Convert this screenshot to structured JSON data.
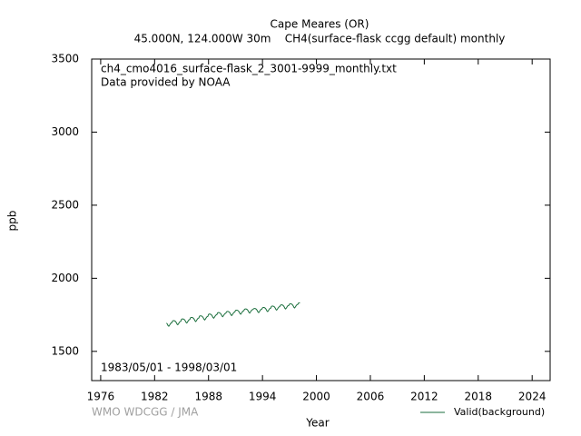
{
  "chart_data": {
    "type": "line",
    "title": "Cape Meares (OR)",
    "subtitle": "45.000N, 124.000W 30m    CH4(surface-flask ccgg default) monthly",
    "annotations": [
      "ch4_cmo4016_surface-flask_2_3001-9999_monthly.txt",
      "Data provided by NOAA",
      "1983/05/01 - 1998/03/01"
    ],
    "credit": "WMO WDCGG / JMA",
    "x_label": "Year",
    "y_label": "ppb",
    "xlim": [
      1975,
      2026
    ],
    "ylim": [
      1300,
      3500
    ],
    "xticks": [
      1976,
      1982,
      1988,
      1994,
      2000,
      2006,
      2012,
      2018,
      2024
    ],
    "yticks": [
      1500,
      2000,
      2500,
      3000,
      3500
    ],
    "grid": false,
    "legend_position": "bottom-right",
    "x": [
      1983.33,
      1983.42,
      1983.5,
      1983.58,
      1983.67,
      1983.75,
      1983.83,
      1983.92,
      1984,
      1984.08,
      1984.17,
      1984.25,
      1984.33,
      1984.42,
      1984.5,
      1984.58,
      1984.67,
      1984.75,
      1984.83,
      1984.92,
      1985,
      1985.08,
      1985.17,
      1985.25,
      1985.33,
      1985.42,
      1985.5,
      1985.58,
      1985.67,
      1985.75,
      1985.83,
      1985.92,
      1986,
      1986.08,
      1986.17,
      1986.25,
      1986.33,
      1986.42,
      1986.5,
      1986.58,
      1986.67,
      1986.75,
      1986.83,
      1986.92,
      1987,
      1987.08,
      1987.17,
      1987.25,
      1987.33,
      1987.42,
      1987.5,
      1987.58,
      1987.67,
      1987.75,
      1987.83,
      1987.92,
      1988,
      1988.08,
      1988.17,
      1988.25,
      1988.33,
      1988.42,
      1988.5,
      1988.58,
      1988.67,
      1988.75,
      1988.83,
      1988.92,
      1989,
      1989.08,
      1989.17,
      1989.25,
      1989.33,
      1989.42,
      1989.5,
      1989.58,
      1989.67,
      1989.75,
      1989.83,
      1989.92,
      1990,
      1990.08,
      1990.17,
      1990.25,
      1990.33,
      1990.42,
      1990.5,
      1990.58,
      1990.67,
      1990.75,
      1990.83,
      1990.92,
      1991,
      1991.08,
      1991.17,
      1991.25,
      1991.33,
      1991.42,
      1991.5,
      1991.58,
      1991.67,
      1991.75,
      1991.83,
      1991.92,
      1992,
      1992.08,
      1992.17,
      1992.25,
      1992.33,
      1992.42,
      1992.5,
      1992.58,
      1992.67,
      1992.75,
      1992.83,
      1992.92,
      1993,
      1993.08,
      1993.17,
      1993.25,
      1993.33,
      1993.42,
      1993.5,
      1993.58,
      1993.67,
      1993.75,
      1993.83,
      1993.92,
      1994,
      1994.08,
      1994.17,
      1994.25,
      1994.33,
      1994.42,
      1994.5,
      1994.58,
      1994.67,
      1994.75,
      1994.83,
      1994.92,
      1995,
      1995.08,
      1995.17,
      1995.25,
      1995.33,
      1995.42,
      1995.5,
      1995.58,
      1995.67,
      1995.75,
      1995.83,
      1995.92,
      1996,
      1996.08,
      1996.17,
      1996.25,
      1996.33,
      1996.42,
      1996.5,
      1996.58,
      1996.67,
      1996.75,
      1996.83,
      1996.92,
      1997,
      1997.08,
      1997.17,
      1997.25,
      1997.33,
      1997.42,
      1997.5,
      1997.58,
      1997.67,
      1997.75,
      1997.83,
      1997.92,
      1998,
      1998.08,
      1998.17
    ],
    "series": [
      {
        "name": "Valid(background)",
        "color": "#1a6e3c",
        "values": [
          1694,
          1686,
          1676,
          1672,
          1680,
          1688,
          1694,
          1696,
          1708,
          1710,
          1710,
          1708,
          1704,
          1696,
          1686,
          1682,
          1690,
          1698,
          1704,
          1706,
          1720,
          1722,
          1722,
          1720,
          1716,
          1708,
          1698,
          1694,
          1702,
          1710,
          1716,
          1718,
          1730,
          1732,
          1732,
          1730,
          1726,
          1718,
          1708,
          1704,
          1712,
          1720,
          1726,
          1728,
          1741,
          1743,
          1743,
          1741,
          1737,
          1729,
          1719,
          1715,
          1723,
          1731,
          1737,
          1739,
          1753,
          1755,
          1755,
          1753,
          1749,
          1741,
          1731,
          1727,
          1735,
          1743,
          1749,
          1751,
          1763,
          1765,
          1765,
          1763,
          1759,
          1751,
          1741,
          1737,
          1745,
          1753,
          1759,
          1761,
          1771,
          1773,
          1773,
          1771,
          1767,
          1759,
          1749,
          1745,
          1753,
          1761,
          1767,
          1769,
          1780,
          1782,
          1782,
          1780,
          1776,
          1768,
          1758,
          1754,
          1762,
          1770,
          1776,
          1778,
          1788,
          1790,
          1790,
          1788,
          1784,
          1776,
          1766,
          1762,
          1770,
          1778,
          1784,
          1786,
          1791,
          1793,
          1793,
          1791,
          1787,
          1779,
          1769,
          1765,
          1773,
          1781,
          1787,
          1789,
          1798,
          1800,
          1800,
          1798,
          1794,
          1786,
          1776,
          1772,
          1780,
          1788,
          1794,
          1796,
          1808,
          1810,
          1810,
          1808,
          1804,
          1796,
          1786,
          1782,
          1790,
          1798,
          1804,
          1806,
          1816,
          1818,
          1818,
          1816,
          1812,
          1804,
          1794,
          1790,
          1798,
          1806,
          1812,
          1814,
          1823,
          1825,
          1825,
          1823,
          1819,
          1811,
          1801,
          1797,
          1805,
          1813,
          1819,
          1821,
          1830,
          1832,
          1832
        ]
      }
    ]
  }
}
